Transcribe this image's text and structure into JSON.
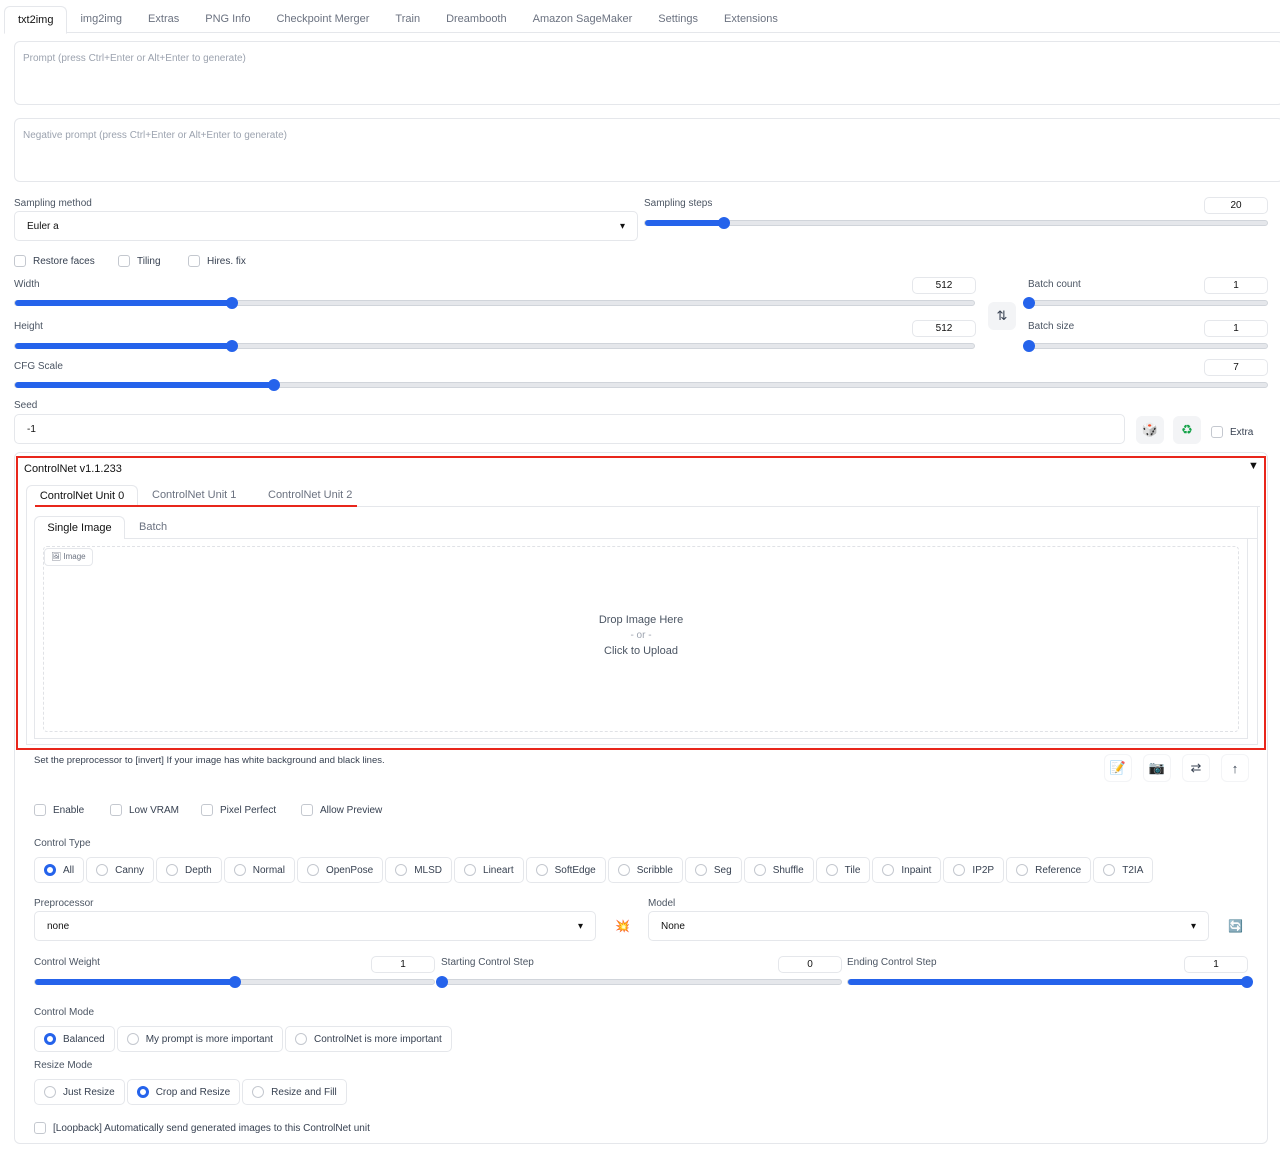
{
  "tabs": [
    "txt2img",
    "img2img",
    "Extras",
    "PNG Info",
    "Checkpoint Merger",
    "Train",
    "Dreambooth",
    "Amazon SageMaker",
    "Settings",
    "Extensions"
  ],
  "prompt": {
    "placeholder": "Prompt (press Ctrl+Enter or Alt+Enter to generate)"
  },
  "negative": {
    "placeholder": "Negative prompt (press Ctrl+Enter or Alt+Enter to generate)"
  },
  "sampling_method": {
    "label": "Sampling method",
    "value": "Euler a"
  },
  "sampling_steps": {
    "label": "Sampling steps",
    "value": 20,
    "min": 1,
    "max": 150
  },
  "checkboxes": [
    "Restore faces",
    "Tiling",
    "Hires. fix"
  ],
  "width": {
    "label": "Width",
    "value": 512,
    "min": 64,
    "max": 2048
  },
  "height": {
    "label": "Height",
    "value": 512,
    "min": 64,
    "max": 2048
  },
  "batch_count": {
    "label": "Batch count",
    "value": 1,
    "min": 1,
    "max": 100
  },
  "batch_size": {
    "label": "Batch size",
    "value": 1,
    "min": 1,
    "max": 8
  },
  "cfg": {
    "label": "CFG Scale",
    "value": 7,
    "min": 1,
    "max": 30
  },
  "seed": {
    "label": "Seed",
    "value": "-1",
    "extra": "Extra"
  },
  "controlnet": {
    "title": "ControlNet v1.1.233",
    "units": [
      "ControlNet Unit 0",
      "ControlNet Unit 1",
      "ControlNet Unit 2"
    ],
    "image_tabs": [
      "Single Image",
      "Batch"
    ],
    "image_label": "Image",
    "drop": "Drop Image Here",
    "or": "- or -",
    "click": "Click to Upload",
    "hint": "Set the preprocessor to [invert] If your image has white background and black lines.",
    "options": [
      "Enable",
      "Low VRAM",
      "Pixel Perfect",
      "Allow Preview"
    ],
    "control_type_label": "Control Type",
    "control_types": [
      "All",
      "Canny",
      "Depth",
      "Normal",
      "OpenPose",
      "MLSD",
      "Lineart",
      "SoftEdge",
      "Scribble",
      "Seg",
      "Shuffle",
      "Tile",
      "Inpaint",
      "IP2P",
      "Reference",
      "T2IA"
    ],
    "control_type_selected": "All",
    "preprocessor": {
      "label": "Preprocessor",
      "value": "none"
    },
    "model": {
      "label": "Model",
      "value": "None"
    },
    "weight": {
      "label": "Control Weight",
      "value": 1,
      "min": 0,
      "max": 2
    },
    "start": {
      "label": "Starting Control Step",
      "value": 0,
      "min": 0,
      "max": 1
    },
    "end": {
      "label": "Ending Control Step",
      "value": 1,
      "min": 0,
      "max": 1
    },
    "control_mode_label": "Control Mode",
    "control_modes": [
      "Balanced",
      "My prompt is more important",
      "ControlNet is more important"
    ],
    "resize_mode_label": "Resize Mode",
    "resize_modes": [
      "Just Resize",
      "Crop and Resize",
      "Resize and Fill"
    ],
    "loopback": "[Loopback] Automatically send generated images to this ControlNet unit"
  },
  "colors": {
    "accent": "#2563eb",
    "highlight": "#e8261b"
  }
}
